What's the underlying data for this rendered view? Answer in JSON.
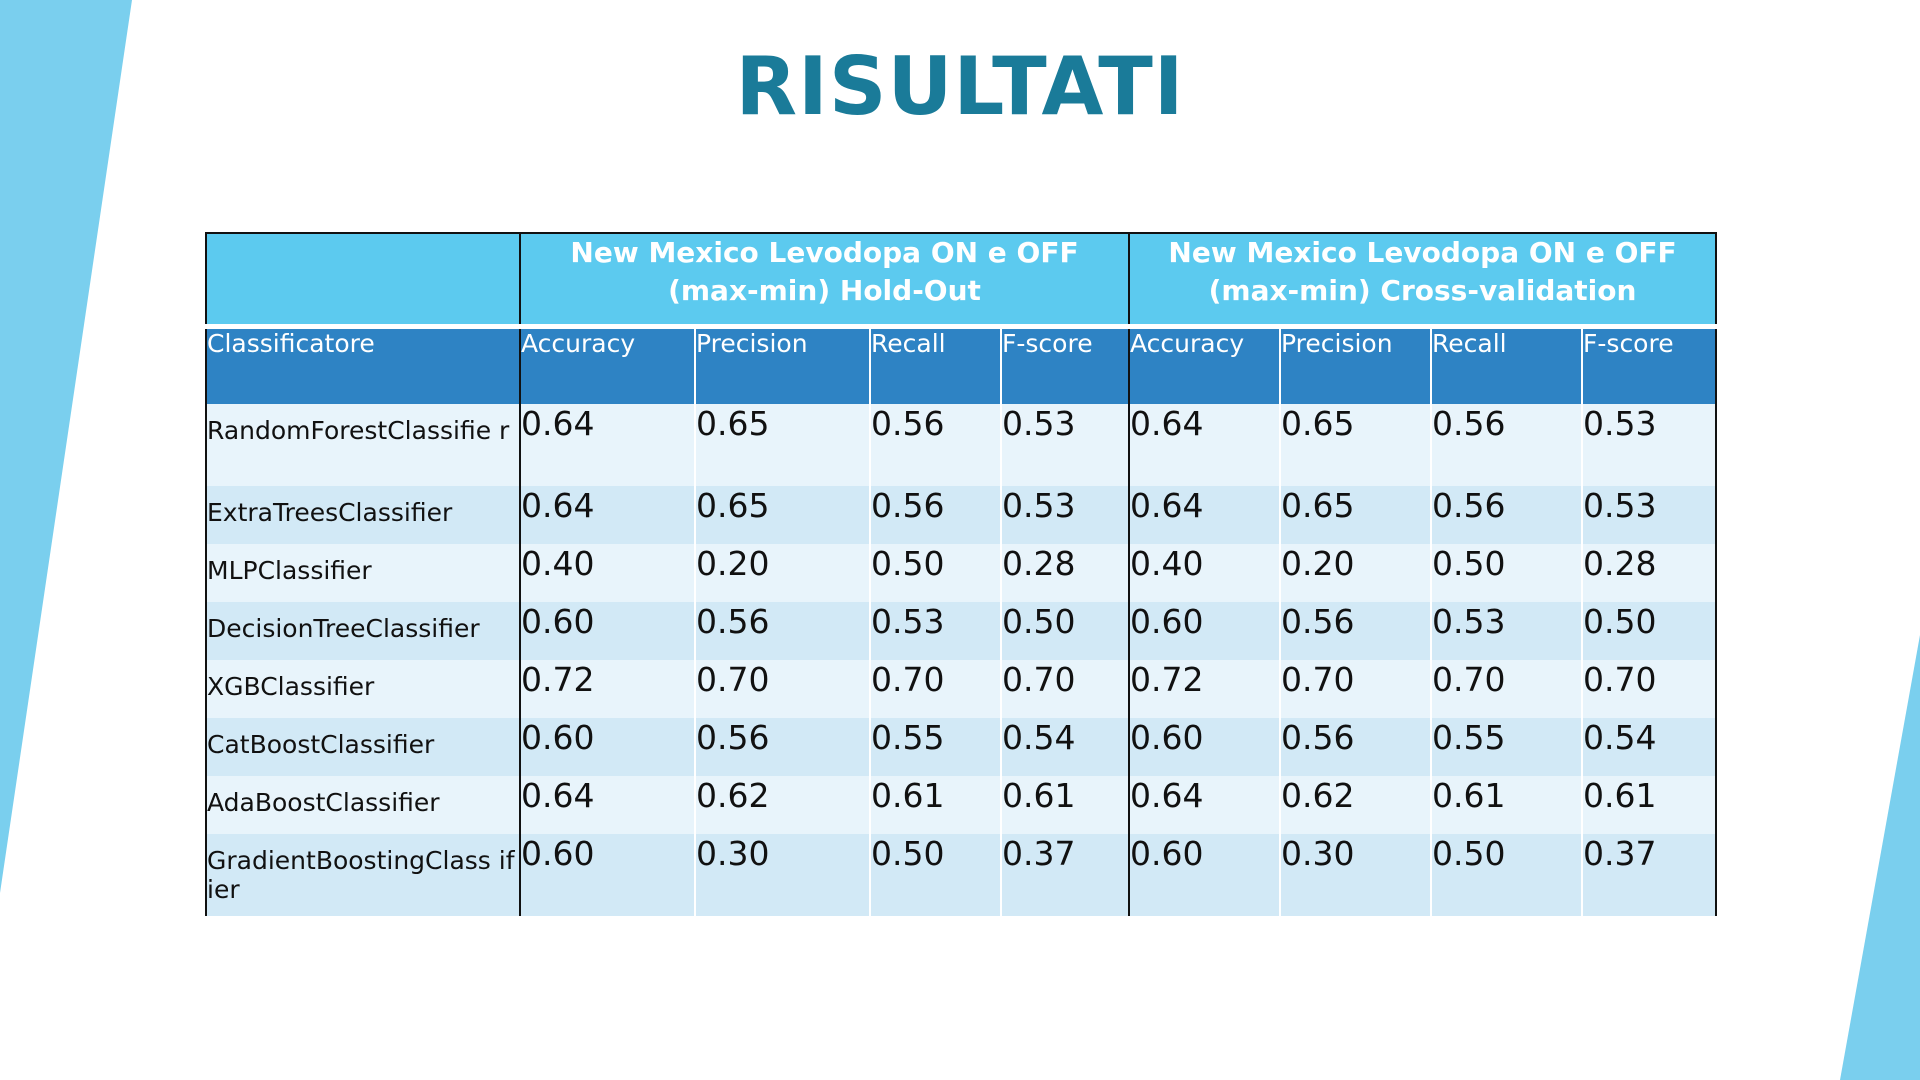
{
  "title": "RISULTATI",
  "colors": {
    "title": "#1a7b99",
    "accent_light": "#7acfee",
    "group_header": "#5ccaef",
    "column_header": "#2e83c4",
    "row_light": "#e8f4fb",
    "row_dark": "#d2e9f6"
  },
  "table": {
    "groups": [
      "New Mexico Levodopa ON e OFF (max-min) Hold-Out",
      "New Mexico  Levodopa ON e OFF (max-min) Cross-validation"
    ],
    "group_lines": [
      [
        "New Mexico Levodopa ON e OFF",
        "(max-min) Hold-Out"
      ],
      [
        "New Mexico  Levodopa ON e OFF",
        "(max-min) Cross-validation"
      ]
    ],
    "columns": [
      "Classificatore",
      "Accuracy",
      "Precision",
      "Recall",
      "F-score",
      "Accuracy",
      "Precision",
      "Recall",
      "F-score"
    ],
    "rows": [
      [
        "RandomForestClassifie r",
        "0.64",
        "0.65",
        "0.56",
        "0.53",
        "0.64",
        "0.65",
        "0.56",
        "0.53"
      ],
      [
        "ExtraTreesClassifier",
        "0.64",
        "0.65",
        "0.56",
        "0.53",
        "0.64",
        "0.65",
        "0.56",
        "0.53"
      ],
      [
        "MLPClassifier",
        "0.40",
        "0.20",
        "0.50",
        "0.28",
        "0.40",
        "0.20",
        "0.50",
        "0.28"
      ],
      [
        "DecisionTreeClassifier",
        "0.60",
        "0.56",
        "0.53",
        "0.50",
        "0.60",
        "0.56",
        "0.53",
        "0.50"
      ],
      [
        "XGBClassifier",
        "0.72",
        "0.70",
        "0.70",
        "0.70",
        "0.72",
        "0.70",
        "0.70",
        "0.70"
      ],
      [
        "CatBoostClassifier",
        "0.60",
        "0.56",
        "0.55",
        "0.54",
        "0.60",
        "0.56",
        "0.55",
        "0.54"
      ],
      [
        "AdaBoostClassifier",
        "0.64",
        "0.62",
        "0.61",
        "0.61",
        "0.64",
        "0.62",
        "0.61",
        "0.61"
      ],
      [
        "GradientBoostingClass ifier",
        "0.60",
        "0.30",
        "0.50",
        "0.37",
        "0.60",
        "0.30",
        "0.50",
        "0.37"
      ]
    ]
  }
}
